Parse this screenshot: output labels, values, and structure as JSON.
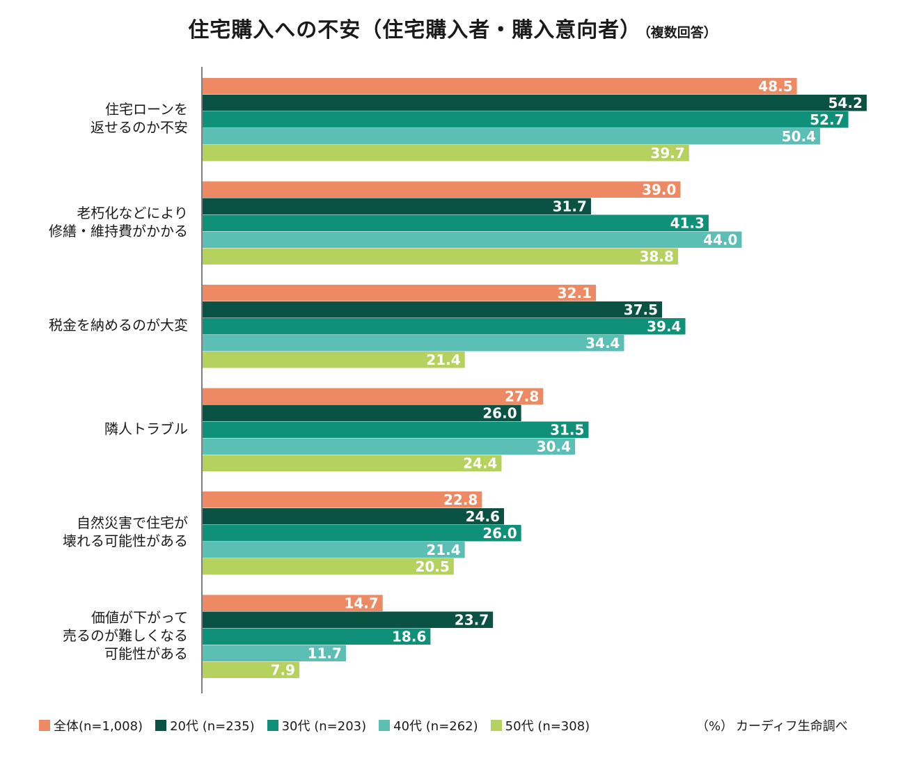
{
  "chart_data": {
    "type": "bar",
    "orientation": "horizontal",
    "title": "住宅購入への不安（住宅購入者・購入意向者）",
    "subtitle": "（複数回答）",
    "unit_note": "（%）",
    "source": "カーディフ生命調べ",
    "xlim": [
      0,
      55
    ],
    "grid": false,
    "legend_position": "bottom",
    "categories": [
      [
        "住宅ローンを",
        "返せるのか不安"
      ],
      [
        "老朽化などにより",
        "修繕・維持費がかかる"
      ],
      [
        "税金を納めるのが大変"
      ],
      [
        "隣人トラブル"
      ],
      [
        "自然災害で住宅が",
        "壊れる可能性がある"
      ],
      [
        "価値が下がって",
        "売るのが難しくなる",
        "可能性がある"
      ]
    ],
    "series": [
      {
        "name": "全体(n=1,008)",
        "color": "#ee8a63",
        "values": [
          48.5,
          39.0,
          32.1,
          27.8,
          22.8,
          14.7
        ],
        "labels": [
          "48.5",
          "39.0",
          "32.1",
          "27.8",
          "22.8",
          "14.7"
        ]
      },
      {
        "name": "20代 (n=235)",
        "color": "#0a5244",
        "values": [
          54.2,
          31.7,
          37.5,
          26.0,
          24.6,
          23.7
        ],
        "labels": [
          "54.2",
          "31.7",
          "37.5",
          "26.0",
          "24.6",
          "23.7"
        ]
      },
      {
        "name": "30代 (n=203)",
        "color": "#0f9179",
        "values": [
          52.7,
          41.3,
          39.4,
          31.5,
          26.0,
          18.6
        ],
        "labels": [
          "52.7",
          "41.3",
          "39.4",
          "31.5",
          "26.0",
          "18.6"
        ]
      },
      {
        "name": "40代 (n=262)",
        "color": "#5bbfb6",
        "values": [
          50.4,
          44.0,
          34.4,
          30.4,
          21.4,
          11.7
        ],
        "labels": [
          "50.4",
          "44.0",
          "34.4",
          "30.4",
          "21.4",
          "11.7"
        ]
      },
      {
        "name": "50代 (n=308)",
        "color": "#b6d25e",
        "values": [
          39.7,
          38.8,
          21.4,
          24.4,
          20.5,
          7.9
        ],
        "labels": [
          "39.7",
          "38.8",
          "21.4",
          "24.4",
          "20.5",
          "7.9"
        ]
      }
    ]
  }
}
